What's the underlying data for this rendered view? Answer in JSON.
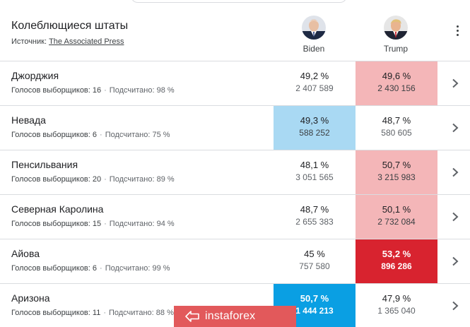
{
  "header": {
    "title": "Колеблющиеся штаты",
    "source_label": "Источник:",
    "source_link": "The Associated Press"
  },
  "candidates": [
    {
      "name": "Biden"
    },
    {
      "name": "Trump"
    }
  ],
  "states": [
    {
      "name": "Джорджия",
      "electors_label": "Голосов выборщиков: 16",
      "counted_label": "Подсчитано: 98 %",
      "biden": {
        "pct": "49,2 %",
        "votes": "2 407 589"
      },
      "trump": {
        "pct": "49,6 %",
        "votes": "2 430 156"
      },
      "leader": "trump",
      "called": false
    },
    {
      "name": "Невада",
      "electors_label": "Голосов выборщиков: 6",
      "counted_label": "Подсчитано: 75 %",
      "biden": {
        "pct": "49,3 %",
        "votes": "588 252"
      },
      "trump": {
        "pct": "48,7 %",
        "votes": "580 605"
      },
      "leader": "biden",
      "called": false
    },
    {
      "name": "Пенсильвания",
      "electors_label": "Голосов выборщиков: 20",
      "counted_label": "Подсчитано: 89 %",
      "biden": {
        "pct": "48,1 %",
        "votes": "3 051 565"
      },
      "trump": {
        "pct": "50,7 %",
        "votes": "3 215 983"
      },
      "leader": "trump",
      "called": false
    },
    {
      "name": "Северная Каролина",
      "electors_label": "Голосов выборщиков: 15",
      "counted_label": "Подсчитано: 94 %",
      "biden": {
        "pct": "48,7 %",
        "votes": "2 655 383"
      },
      "trump": {
        "pct": "50,1 %",
        "votes": "2 732 084"
      },
      "leader": "trump",
      "called": false
    },
    {
      "name": "Айова",
      "electors_label": "Голосов выборщиков: 6",
      "counted_label": "Подсчитано: 99 %",
      "biden": {
        "pct": "45 %",
        "votes": "757 580"
      },
      "trump": {
        "pct": "53,2 %",
        "votes": "896 286"
      },
      "leader": "trump",
      "called": true
    },
    {
      "name": "Аризона",
      "electors_label": "Голосов выборщиков: 11",
      "counted_label": "Подсчитано: 88 %",
      "biden": {
        "pct": "50,7 %",
        "votes": "1 444 213"
      },
      "trump": {
        "pct": "47,9 %",
        "votes": "1 365 040"
      },
      "leader": "biden",
      "called": true
    }
  ],
  "watermark": {
    "text": "instaforex"
  },
  "colors": {
    "trump_leading": "#f4b6b8",
    "biden_leading": "#a9d9f3",
    "trump_called": "#d8232f",
    "biden_called": "#0a9fe3",
    "watermark_bg": "#e2595b"
  }
}
